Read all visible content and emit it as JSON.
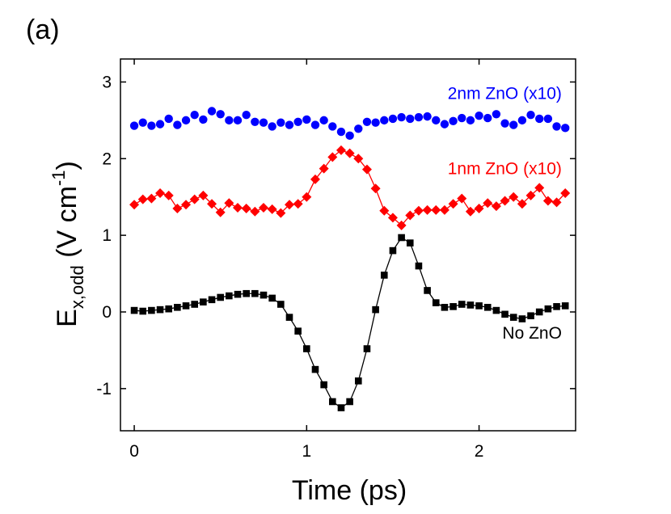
{
  "panel_label": "(a)",
  "chart_data": {
    "type": "scatter",
    "xlabel": "Time (ps)",
    "ylabel": {
      "main": "E",
      "subscript": "x,odd",
      "units": " (V cm",
      "exponent": "-1",
      "close": ")"
    },
    "xlim": [
      -0.08,
      2.56
    ],
    "ylim": [
      -1.55,
      3.3
    ],
    "xticks": [
      0,
      1,
      2
    ],
    "yticks": [
      -1,
      0,
      1,
      2,
      3
    ],
    "grid": false,
    "series": [
      {
        "name": "2nm ZnO (x10)",
        "color": "#0000ff",
        "marker": "circle",
        "line": false,
        "x": [
          0,
          0.05,
          0.1,
          0.15,
          0.2,
          0.25,
          0.3,
          0.35,
          0.4,
          0.45,
          0.5,
          0.55,
          0.6,
          0.65,
          0.7,
          0.75,
          0.8,
          0.85,
          0.9,
          0.95,
          1.0,
          1.05,
          1.1,
          1.15,
          1.2,
          1.25,
          1.3,
          1.35,
          1.4,
          1.45,
          1.5,
          1.55,
          1.6,
          1.65,
          1.7,
          1.75,
          1.8,
          1.85,
          1.9,
          1.95,
          2.0,
          2.05,
          2.1,
          2.15,
          2.2,
          2.25,
          2.3,
          2.35,
          2.4,
          2.45,
          2.5
        ],
        "y": [
          2.43,
          2.47,
          2.43,
          2.45,
          2.52,
          2.44,
          2.5,
          2.57,
          2.51,
          2.62,
          2.58,
          2.5,
          2.5,
          2.57,
          2.48,
          2.47,
          2.42,
          2.47,
          2.44,
          2.48,
          2.51,
          2.44,
          2.5,
          2.42,
          2.35,
          2.3,
          2.39,
          2.48,
          2.47,
          2.5,
          2.52,
          2.54,
          2.52,
          2.54,
          2.55,
          2.5,
          2.45,
          2.49,
          2.53,
          2.5,
          2.56,
          2.53,
          2.58,
          2.46,
          2.44,
          2.5,
          2.57,
          2.52,
          2.52,
          2.42,
          2.4
        ]
      },
      {
        "name": "1nm ZnO (x10)",
        "color": "#ff0000",
        "marker": "diamond",
        "line": true,
        "x": [
          0,
          0.05,
          0.1,
          0.15,
          0.2,
          0.25,
          0.3,
          0.35,
          0.4,
          0.45,
          0.5,
          0.55,
          0.6,
          0.65,
          0.7,
          0.75,
          0.8,
          0.85,
          0.9,
          0.95,
          1.0,
          1.05,
          1.1,
          1.15,
          1.2,
          1.25,
          1.3,
          1.35,
          1.4,
          1.45,
          1.5,
          1.55,
          1.6,
          1.65,
          1.7,
          1.75,
          1.8,
          1.85,
          1.9,
          1.95,
          2.0,
          2.05,
          2.1,
          2.15,
          2.2,
          2.25,
          2.3,
          2.35,
          2.4,
          2.45,
          2.5
        ],
        "y": [
          1.4,
          1.47,
          1.48,
          1.55,
          1.52,
          1.35,
          1.4,
          1.47,
          1.52,
          1.41,
          1.3,
          1.42,
          1.36,
          1.35,
          1.31,
          1.36,
          1.34,
          1.29,
          1.4,
          1.41,
          1.5,
          1.73,
          1.87,
          2.02,
          2.11,
          2.07,
          2.0,
          1.86,
          1.61,
          1.32,
          1.23,
          1.13,
          1.26,
          1.32,
          1.33,
          1.33,
          1.33,
          1.41,
          1.48,
          1.31,
          1.35,
          1.42,
          1.38,
          1.45,
          1.5,
          1.41,
          1.52,
          1.62,
          1.45,
          1.43,
          1.55
        ]
      },
      {
        "name": "No ZnO",
        "color": "#000000",
        "marker": "square",
        "line": true,
        "x": [
          0,
          0.05,
          0.1,
          0.15,
          0.2,
          0.25,
          0.3,
          0.35,
          0.4,
          0.45,
          0.5,
          0.55,
          0.6,
          0.65,
          0.7,
          0.75,
          0.8,
          0.85,
          0.9,
          0.95,
          1.0,
          1.05,
          1.1,
          1.15,
          1.2,
          1.25,
          1.3,
          1.35,
          1.4,
          1.45,
          1.5,
          1.55,
          1.6,
          1.65,
          1.7,
          1.75,
          1.8,
          1.85,
          1.9,
          1.95,
          2.0,
          2.05,
          2.1,
          2.15,
          2.2,
          2.25,
          2.3,
          2.35,
          2.4,
          2.45,
          2.5
        ],
        "y": [
          0.02,
          0.01,
          0.02,
          0.03,
          0.04,
          0.06,
          0.08,
          0.1,
          0.13,
          0.16,
          0.19,
          0.21,
          0.23,
          0.24,
          0.24,
          0.22,
          0.18,
          0.1,
          -0.07,
          -0.25,
          -0.48,
          -0.75,
          -0.95,
          -1.17,
          -1.25,
          -1.17,
          -0.9,
          -0.48,
          0.03,
          0.48,
          0.8,
          0.97,
          0.9,
          0.6,
          0.28,
          0.12,
          0.06,
          0.07,
          0.1,
          0.09,
          0.08,
          0.06,
          0.02,
          -0.03,
          -0.07,
          -0.09,
          -0.05,
          0.0,
          0.04,
          0.07,
          0.08
        ]
      }
    ],
    "annotations": [
      {
        "series": "2nm ZnO (x10)",
        "text": "2nm ZnO (x10)",
        "color": "#0000ff",
        "anchor_x": 2.48,
        "anchor_y": 2.78
      },
      {
        "series": "1nm ZnO (x10)",
        "text": "1nm ZnO (x10)",
        "color": "#ff0000",
        "anchor_x": 2.48,
        "anchor_y": 1.8
      },
      {
        "series": "No ZnO",
        "text": "No ZnO",
        "color": "#000000",
        "anchor_x": 2.48,
        "anchor_y": -0.35
      }
    ]
  }
}
